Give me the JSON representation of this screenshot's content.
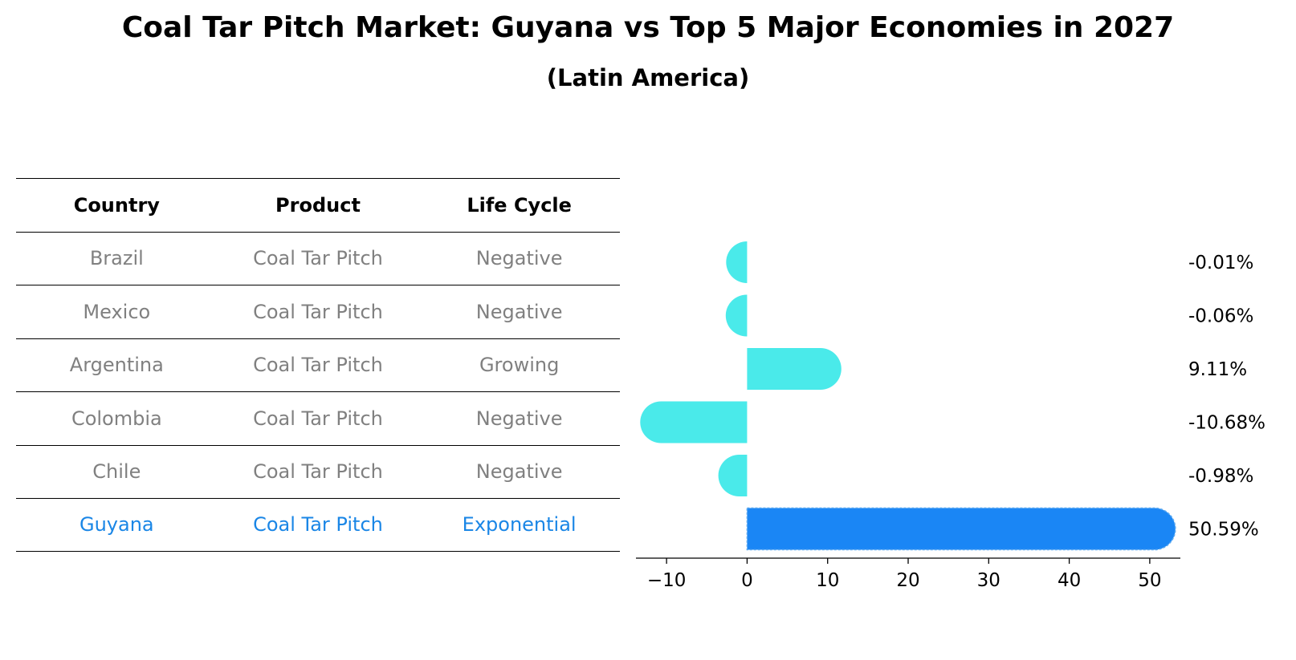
{
  "title": "Coal Tar Pitch Market: Guyana vs Top 5 Major Economies in 2027",
  "subtitle": "(Latin America)",
  "table": {
    "headers": [
      "Country",
      "Product",
      "Life Cycle"
    ],
    "rows": [
      {
        "country": "Brazil",
        "product": "Coal Tar Pitch",
        "life_cycle": "Negative"
      },
      {
        "country": "Mexico",
        "product": "Coal Tar Pitch",
        "life_cycle": "Negative"
      },
      {
        "country": "Argentina",
        "product": "Coal Tar Pitch",
        "life_cycle": "Growing"
      },
      {
        "country": "Colombia",
        "product": "Coal Tar Pitch",
        "life_cycle": "Negative"
      },
      {
        "country": "Chile",
        "product": "Coal Tar Pitch",
        "life_cycle": "Negative"
      },
      {
        "country": "Guyana",
        "product": "Coal Tar Pitch",
        "life_cycle": "Exponential"
      }
    ],
    "highlight_color": "#1a86e6",
    "text_color": "#808080"
  },
  "chart_data": {
    "type": "bar",
    "orientation": "horizontal",
    "categories": [
      "Brazil",
      "Mexico",
      "Argentina",
      "Colombia",
      "Chile",
      "Guyana"
    ],
    "values": [
      -0.01,
      -0.06,
      9.11,
      -10.68,
      -0.98,
      50.59
    ],
    "value_labels": [
      "-0.01%",
      "-0.06%",
      "9.11%",
      "-10.68%",
      "-0.98%",
      "50.59%"
    ],
    "xlim": [
      -13.8,
      53.8
    ],
    "xticks": [
      -10,
      0,
      10,
      20,
      30,
      40,
      50
    ],
    "xtick_labels": [
      "−10",
      "0",
      "10",
      "20",
      "30",
      "40",
      "50"
    ],
    "bar_color": "#4aeaea",
    "highlight_color": "#1a86f5",
    "highlight_category": "Guyana",
    "grid": false
  }
}
